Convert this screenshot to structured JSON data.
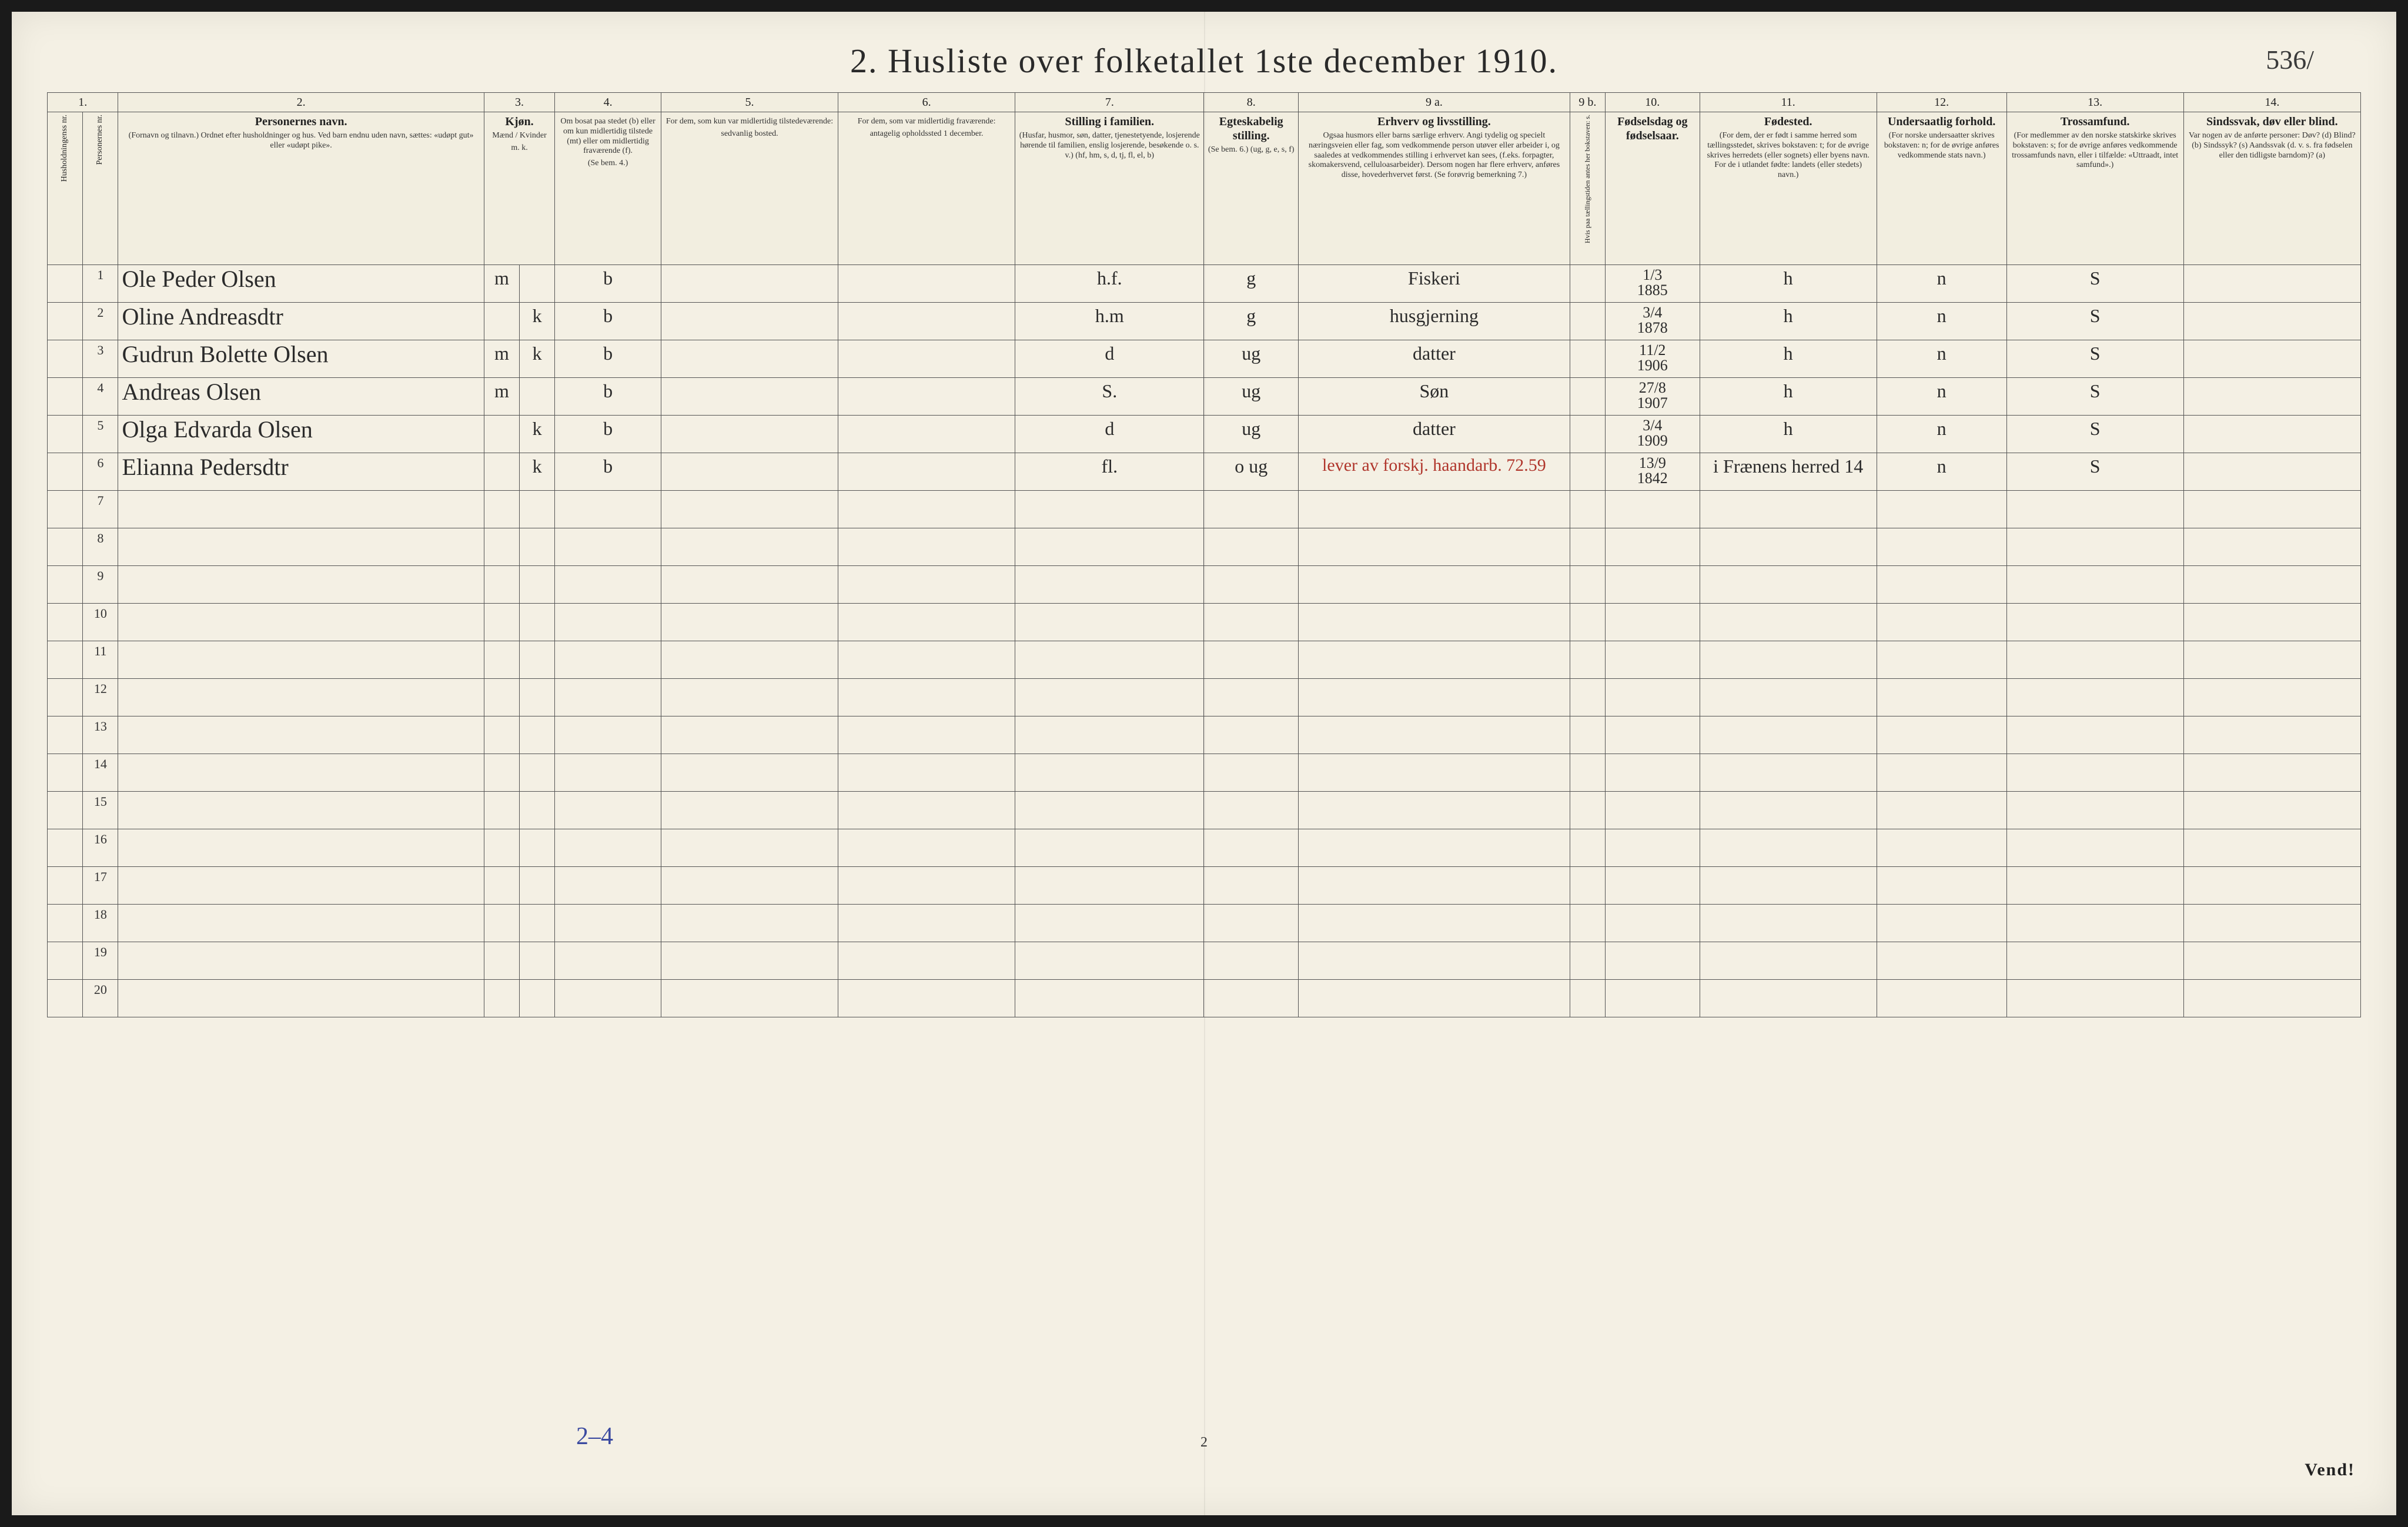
{
  "title": "2.  Husliste over folketallet 1ste december 1910.",
  "corner_note": "536/",
  "footer_blue": "2–4",
  "page_number": "2",
  "vend": "Vend!",
  "column_numbers": [
    "1.",
    "2.",
    "3.",
    "4.",
    "5.",
    "6.",
    "7.",
    "8.",
    "9 a.",
    "9 b.",
    "10.",
    "11.",
    "12.",
    "13.",
    "14."
  ],
  "headers": {
    "h1": "Husholdningenss nr.",
    "h1b": "Personernes nr.",
    "h2": "Personernes navn.",
    "h2_sub": "(Fornavn og tilnavn.)\nOrdnet efter husholdninger og hus.\nVed barn endnu uden navn, sættes: «udøpt gut» eller «udøpt pike».",
    "h3": "Kjøn.",
    "h3_sub": "Mænd / Kvinder",
    "h3_mk": "m.  k.",
    "h4": "Om bosat paa stedet (b) eller om kun midlertidig tilstede (mt) eller om midlertidig fraværende (f).",
    "h4_sub": "(Se bem. 4.)",
    "h5": "For dem, som kun var midlertidig tilstedeværende:",
    "h5_sub": "sedvanlig bosted.",
    "h6": "For dem, som var midlertidig fraværende:",
    "h6_sub": "antagelig opholdssted 1 december.",
    "h7": "Stilling i familien.",
    "h7_sub": "(Husfar, husmor, søn, datter, tjenestetyende, losjerende hørende til familien, enslig losjerende, besøkende o. s. v.) (hf, hm, s, d, tj, fl, el, b)",
    "h8": "Egteskabelig stilling.",
    "h8_sub": "(Se bem. 6.) (ug, g, e, s, f)",
    "h9a": "Erhverv og livsstilling.",
    "h9a_sub": "Ogsaa husmors eller barns særlige erhverv. Angi tydelig og specielt næringsveien eller fag, som vedkommende person utøver eller arbeider i, og saaledes at vedkommendes stilling i erhvervet kan sees, (f.eks. forpagter, skomakersvend, celluloasarbeider). Dersom nogen har flere erhverv, anføres disse, hovederhvervet først. (Se forøvrig bemerkning 7.)",
    "h9b": "Hvis paa tællingstiden antes her bokstaven: s.",
    "h10": "Fødselsdag og fødselsaar.",
    "h11": "Fødested.",
    "h11_sub": "(For dem, der er født i samme herred som tællingsstedet, skrives bokstaven: t; for de øvrige skrives herredets (eller sognets) eller byens navn. For de i utlandet fødte: landets (eller stedets) navn.)",
    "h12": "Undersaatlig forhold.",
    "h12_sub": "(For norske undersaatter skrives bokstaven: n; for de øvrige anføres vedkommende stats navn.)",
    "h13": "Trossamfund.",
    "h13_sub": "(For medlemmer av den norske statskirke skrives bokstaven: s; for de øvrige anføres vedkommende trossamfunds navn, eller i tilfælde: «Uttraadt, intet samfund».)",
    "h14": "Sindssvak, døv eller blind.",
    "h14_sub": "Var nogen av de anførte personer: Døv? (d) Blind? (b) Sindssyk? (s) Aandssvak (d. v. s. fra fødselen eller den tidligste barndom)? (a)"
  },
  "rows": [
    {
      "n": "1",
      "name": "Ole Peder Olsen",
      "m": "m",
      "k": "",
      "bos": "b",
      "c5": "",
      "c6": "",
      "fam": "h.f.",
      "egte": "g",
      "erhv": "Fiskeri",
      "c9b": "",
      "fdag": "1/3",
      "faar": "1885",
      "fsted": "h",
      "und": "n",
      "tro": "S",
      "c14": ""
    },
    {
      "n": "2",
      "name": "Oline Andreasdtr",
      "m": "",
      "k": "k",
      "bos": "b",
      "c5": "",
      "c6": "",
      "fam": "h.m",
      "egte": "g",
      "erhv": "husgjerning",
      "c9b": "",
      "fdag": "3/4",
      "faar": "1878",
      "fsted": "h",
      "und": "n",
      "tro": "S",
      "c14": ""
    },
    {
      "n": "3",
      "name": "Gudrun Bolette Olsen",
      "m": "m",
      "k": "k",
      "bos": "b",
      "c5": "",
      "c6": "",
      "fam": "d",
      "egte": "ug",
      "erhv": "datter",
      "c9b": "",
      "fdag": "11/2",
      "faar": "1906",
      "fsted": "h",
      "und": "n",
      "tro": "S",
      "c14": ""
    },
    {
      "n": "4",
      "name": "Andreas Olsen",
      "m": "m",
      "k": "",
      "bos": "b",
      "c5": "",
      "c6": "",
      "fam": "S.",
      "egte": "ug",
      "erhv": "Søn",
      "c9b": "",
      "fdag": "27/8",
      "faar": "1907",
      "fsted": "h",
      "und": "n",
      "tro": "S",
      "c14": ""
    },
    {
      "n": "5",
      "name": "Olga Edvarda Olsen",
      "m": "",
      "k": "k",
      "bos": "b",
      "c5": "",
      "c6": "",
      "fam": "d",
      "egte": "ug",
      "erhv": "datter",
      "c9b": "",
      "fdag": "3/4",
      "faar": "1909",
      "fsted": "h",
      "und": "n",
      "tro": "S",
      "c14": ""
    },
    {
      "n": "6",
      "name": "Elianna Pedersdtr",
      "m": "",
      "k": "k",
      "bos": "b",
      "c5": "",
      "c6": "",
      "fam": "fl.",
      "egte": "o  ug",
      "erhv": "lever av forskj. haandarb. 72.59",
      "c9b": "",
      "fdag": "13/9",
      "faar": "1842",
      "fsted": "i Frænens herred 14",
      "und": "n",
      "tro": "S",
      "c14": ""
    }
  ],
  "empty_rows": [
    "7",
    "8",
    "9",
    "10",
    "11",
    "12",
    "13",
    "14",
    "15",
    "16",
    "17",
    "18",
    "19",
    "20"
  ]
}
